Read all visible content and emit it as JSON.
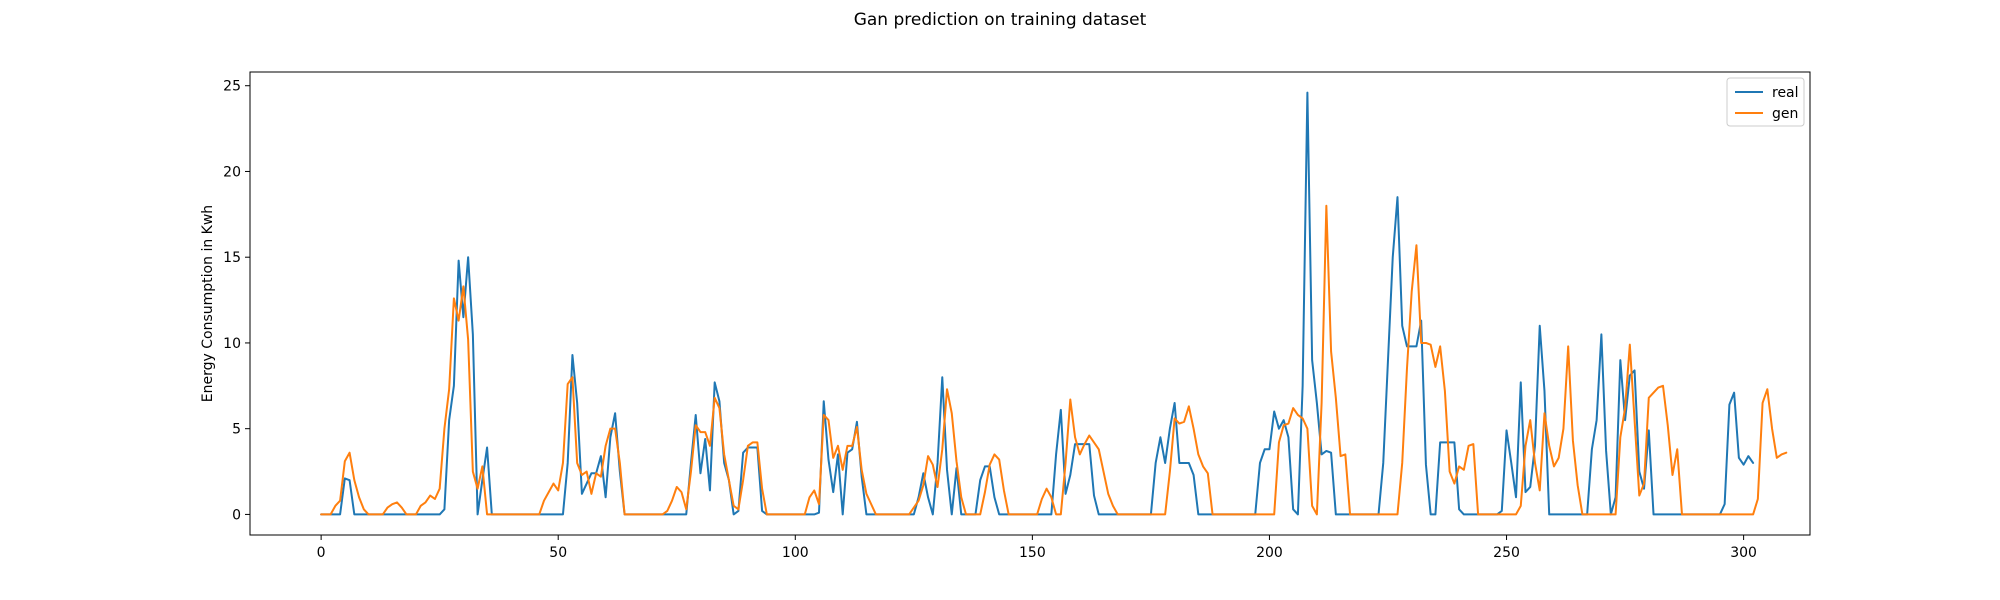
{
  "chart_data": {
    "type": "line",
    "title": "Gan prediction on training dataset",
    "xlabel": "",
    "ylabel": "Energy Consumption in Kwh",
    "xlim": [
      -15,
      314
    ],
    "ylim": [
      -1.2,
      25.8
    ],
    "xticks": [
      0,
      50,
      100,
      150,
      200,
      250,
      300
    ],
    "yticks": [
      0,
      5,
      10,
      15,
      20,
      25
    ],
    "grid": false,
    "legend_position": "top-right",
    "series": [
      {
        "name": "real",
        "color": "#1f77b4",
        "values": [
          0,
          0,
          0,
          0,
          0,
          2.1,
          2,
          0,
          0,
          0,
          0,
          0,
          0,
          0,
          0,
          0,
          0,
          0,
          0,
          0,
          0,
          0,
          0,
          0,
          0,
          0,
          0.3,
          5.5,
          7.5,
          14.8,
          11.5,
          15,
          10.5,
          0,
          2,
          3.9,
          0,
          0,
          0,
          0,
          0,
          0,
          0,
          0,
          0,
          0,
          0,
          0,
          0,
          0,
          0,
          0,
          3,
          9.3,
          6.5,
          1.2,
          1.8,
          2.4,
          2.4,
          3.4,
          1,
          4.5,
          5.9,
          2.5,
          0,
          0,
          0,
          0,
          0,
          0,
          0,
          0,
          0,
          0,
          0,
          0,
          0,
          0,
          3,
          5.8,
          2.4,
          4.4,
          1.4,
          7.7,
          6.6,
          3,
          2,
          0,
          0.2,
          3.6,
          3.9,
          3.9,
          3.9,
          0.2,
          0,
          0,
          0,
          0,
          0,
          0,
          0,
          0,
          0,
          0,
          0,
          0.1,
          6.6,
          3.2,
          1.3,
          3.5,
          0,
          3.6,
          3.8,
          5.4,
          2.2,
          0,
          0,
          0,
          0,
          0,
          0,
          0,
          0,
          0,
          0,
          0,
          1,
          2.4,
          1,
          0,
          3,
          8,
          2.6,
          0,
          2.7,
          0,
          0,
          0,
          0,
          2,
          2.8,
          2.8,
          1,
          0,
          0,
          0,
          0,
          0,
          0,
          0,
          0,
          0,
          0,
          0,
          0,
          3.5,
          6.1,
          1.2,
          2.3,
          4.1,
          4.1,
          4.1,
          4.1,
          1.1,
          0,
          0,
          0,
          0,
          0,
          0,
          0,
          0,
          0,
          0,
          0,
          0,
          3,
          4.5,
          3,
          5,
          6.5,
          3,
          3,
          3,
          2.3,
          0,
          0,
          0,
          0,
          0,
          0,
          0,
          0,
          0,
          0,
          0,
          0,
          0,
          3,
          3.8,
          3.8,
          6,
          5,
          5.5,
          4.5,
          0.3,
          0,
          7.5,
          24.6,
          9,
          6.5,
          3.5,
          3.7,
          3.6,
          0,
          0,
          0,
          0,
          0,
          0,
          0,
          0,
          0,
          0,
          3,
          9,
          15,
          18.5,
          11,
          9.8,
          9.8,
          9.8,
          11.3,
          2.9,
          0,
          0,
          4.2,
          4.2,
          4.2,
          4.2,
          0.3,
          0,
          0,
          0,
          0,
          0,
          0,
          0,
          0,
          0.2,
          4.9,
          3,
          1,
          7.7,
          1.3,
          1.6,
          4,
          11,
          7.2,
          0,
          0,
          0,
          0,
          0,
          0,
          0,
          0,
          0,
          3.8,
          5.5,
          10.5,
          3.7,
          0,
          1,
          9,
          5.5,
          8.1,
          8.4,
          2.5,
          1.5,
          4.9,
          0,
          0,
          0,
          0,
          0,
          0,
          0,
          0,
          0,
          0,
          0,
          0,
          0,
          0,
          0,
          0.6,
          6.4,
          7.1,
          3.3,
          2.9,
          3.4,
          3
        ]
      },
      {
        "name": "gen",
        "color": "#ff7f0e",
        "values": [
          0,
          0,
          0,
          0.5,
          0.8,
          3.1,
          3.6,
          2,
          1,
          0.3,
          0,
          0,
          0,
          0,
          0.4,
          0.6,
          0.7,
          0.4,
          0,
          0,
          0,
          0.5,
          0.7,
          1.1,
          0.9,
          1.5,
          5,
          7.3,
          12.6,
          11.3,
          13.3,
          10.2,
          2.5,
          1.5,
          2.8,
          0,
          0,
          0,
          0,
          0,
          0,
          0,
          0,
          0,
          0,
          0,
          0,
          0.8,
          1.3,
          1.8,
          1.4,
          3,
          7.6,
          8,
          3,
          2.3,
          2.5,
          1.2,
          2.4,
          2.2,
          4,
          5,
          5,
          3,
          0,
          0,
          0,
          0,
          0,
          0,
          0,
          0,
          0,
          0.2,
          0.8,
          1.6,
          1.3,
          0.3,
          2.5,
          5.2,
          4.8,
          4.8,
          4,
          6.8,
          6.2,
          3.5,
          2,
          0.5,
          0.3,
          2,
          4,
          4.2,
          4.2,
          1.5,
          0,
          0,
          0,
          0,
          0,
          0,
          0,
          0,
          0,
          1,
          1.4,
          0.6,
          5.8,
          5.5,
          3.3,
          4,
          2.6,
          4,
          4,
          5.1,
          2.6,
          1.2,
          0.6,
          0,
          0,
          0,
          0,
          0,
          0,
          0,
          0,
          0.4,
          0.8,
          1.7,
          3.4,
          2.9,
          1.6,
          3.8,
          7.3,
          5.9,
          3.1,
          1,
          0,
          0,
          0,
          0,
          1.3,
          2.9,
          3.5,
          3.2,
          1.4,
          0,
          0,
          0,
          0,
          0,
          0,
          0,
          0.9,
          1.5,
          1,
          0,
          0,
          3,
          6.7,
          4.5,
          3.5,
          4.1,
          4.6,
          4.2,
          3.8,
          2.5,
          1.2,
          0.5,
          0,
          0,
          0,
          0,
          0,
          0,
          0,
          0,
          0,
          0,
          0,
          2.5,
          5.6,
          5.3,
          5.4,
          6.3,
          5,
          3.5,
          2.8,
          2.4,
          0,
          0,
          0,
          0,
          0,
          0,
          0,
          0,
          0,
          0,
          0,
          0,
          0,
          0,
          4.2,
          5.2,
          5.3,
          6.2,
          5.8,
          5.6,
          5,
          0.5,
          0,
          6.5,
          18,
          9.5,
          6.8,
          3.4,
          3.5,
          0,
          0,
          0,
          0,
          0,
          0,
          0,
          0,
          0,
          0,
          0,
          3,
          8.5,
          13,
          15.7,
          10,
          10,
          9.9,
          8.6,
          9.8,
          7.2,
          2.5,
          1.8,
          2.8,
          2.6,
          4,
          4.1,
          0,
          0,
          0,
          0,
          0,
          0,
          0,
          0,
          0,
          0.5,
          4,
          5.5,
          3,
          1.4,
          5.9,
          4,
          2.8,
          3.3,
          5,
          9.8,
          4.3,
          1.7,
          0,
          0,
          0,
          0,
          0,
          0,
          0,
          0,
          4.5,
          6.2,
          9.9,
          5.5,
          1.1,
          1.8,
          6.8,
          7.1,
          7.4,
          7.5,
          5.2,
          2.3,
          3.8,
          0,
          0,
          0,
          0,
          0,
          0,
          0,
          0,
          0,
          0,
          0,
          0,
          0,
          0,
          0,
          0,
          0.9,
          6.5,
          7.3,
          5,
          3.3,
          3.5,
          3.6
        ]
      }
    ]
  }
}
